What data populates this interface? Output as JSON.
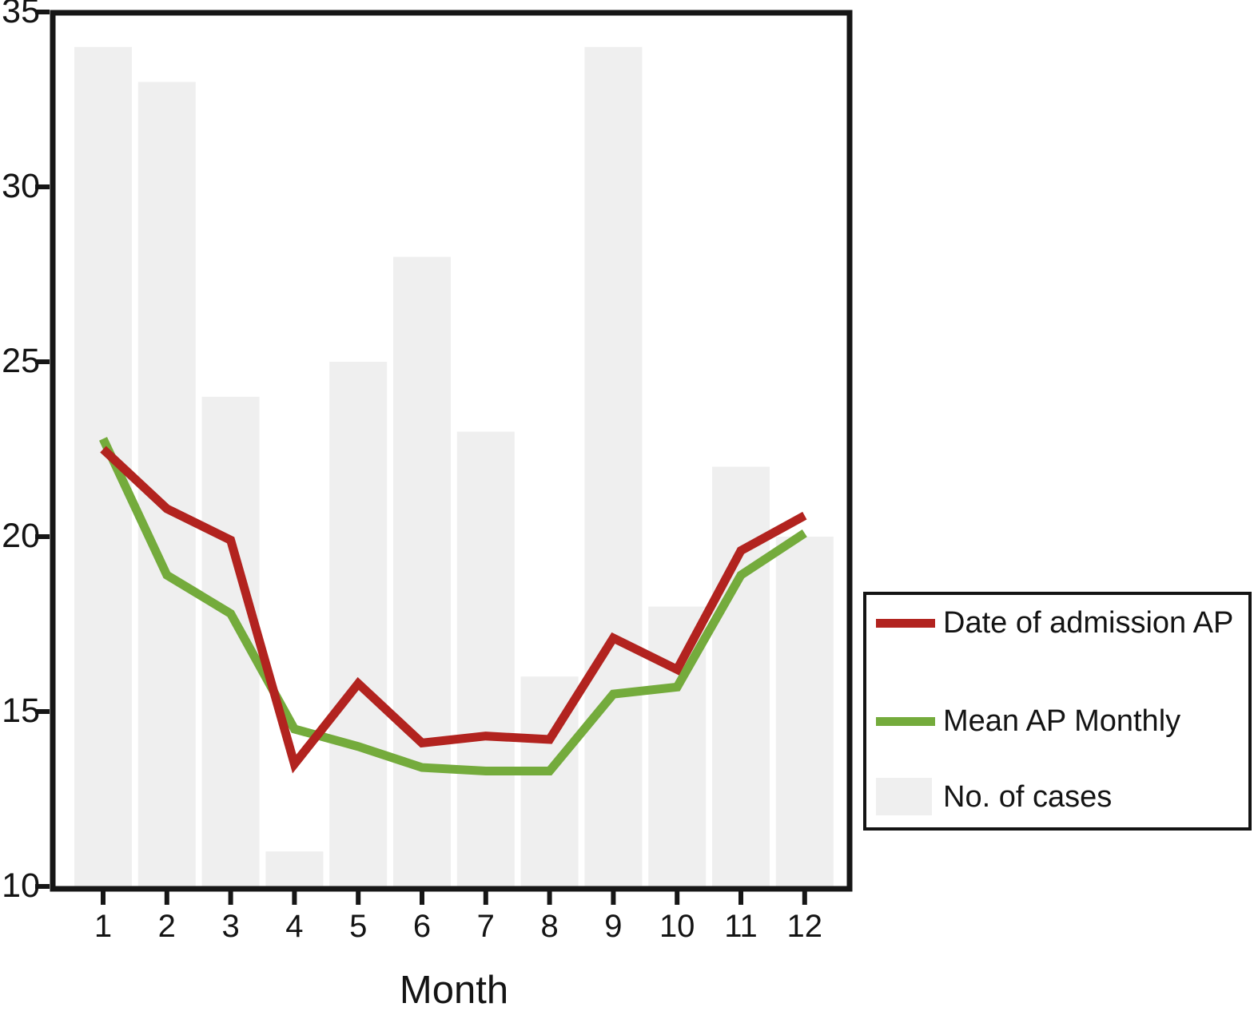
{
  "figure": {
    "background": "#ffffff",
    "axis_color": "#161616"
  },
  "colors": {
    "admission_line": "#b2231f",
    "mean_line": "#74ab3c",
    "cases_bar": "#efefef",
    "frame": "#161616",
    "legend_border": "#141414"
  },
  "x_axis": {
    "title": "Month",
    "tick_labels": [
      "1",
      "2",
      "3",
      "4",
      "5",
      "6",
      "7",
      "8",
      "9",
      "10",
      "11",
      "12"
    ]
  },
  "y_axis": {
    "tick_labels": [
      "35",
      "30",
      "25",
      "20",
      "15",
      "10"
    ],
    "tick_values": [
      35,
      30,
      25,
      20,
      15,
      10
    ]
  },
  "chart_data": {
    "type": "bar+line",
    "title": "",
    "xlabel": "Month",
    "ylabel": "",
    "x": [
      1,
      2,
      3,
      4,
      5,
      6,
      7,
      8,
      9,
      10,
      11,
      12
    ],
    "ylim": [
      10,
      35
    ],
    "yticks": [
      35,
      30,
      25,
      20,
      15,
      10
    ],
    "grid": false,
    "legend_position": "right-outside",
    "series": [
      {
        "name": "Date of admission AP",
        "type": "line",
        "color": "#b2231f",
        "values": [
          22.5,
          20.8,
          19.9,
          13.5,
          15.8,
          14.1,
          14.3,
          14.2,
          17.1,
          16.2,
          19.6,
          20.6
        ]
      },
      {
        "name": "Mean AP Monthly",
        "type": "line",
        "color": "#74ab3c",
        "values": [
          22.8,
          18.9,
          17.8,
          14.5,
          14.0,
          13.4,
          13.3,
          13.3,
          15.5,
          15.7,
          18.9,
          20.1
        ]
      },
      {
        "name": "No. of cases",
        "type": "bar",
        "color": "#efefef",
        "values": [
          34,
          33,
          24,
          11,
          25,
          28,
          23,
          16,
          34,
          18,
          22,
          20
        ]
      }
    ]
  }
}
